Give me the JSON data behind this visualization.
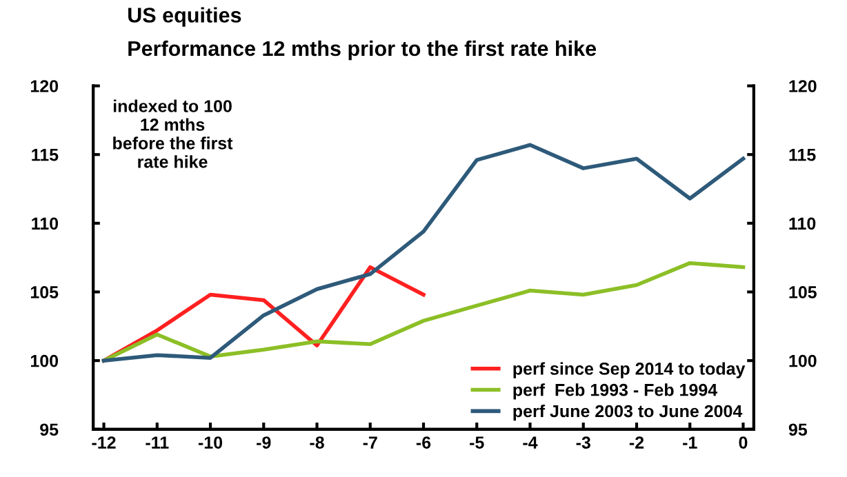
{
  "chart_data": {
    "type": "line",
    "title": "US equities",
    "subtitle": "Performance 12 mths prior to the first rate hike",
    "categories": [
      "-12",
      "-11",
      "-10",
      "-9",
      "-8",
      "-7",
      "-6",
      "-5",
      "-4",
      "-3",
      "-2",
      "-1",
      "0"
    ],
    "series": [
      {
        "name": "perf since Sep 2014 to today",
        "color": "#ff2020",
        "values": [
          100,
          102.2,
          104.8,
          104.4,
          101.1,
          106.8,
          104.8,
          null,
          null,
          null,
          null,
          null,
          null
        ]
      },
      {
        "name": "perf  Feb 1993 - Feb 1994",
        "color": "#8cbf26",
        "values": [
          100,
          101.9,
          100.3,
          100.8,
          101.4,
          101.2,
          102.9,
          104.0,
          105.1,
          104.8,
          105.5,
          107.1,
          106.8
        ]
      },
      {
        "name": "perf June 2003 to June 2004",
        "color": "#2e5a7a",
        "values": [
          100,
          100.4,
          100.2,
          103.3,
          105.2,
          106.3,
          109.4,
          114.6,
          115.7,
          114.0,
          114.7,
          111.8,
          114.7
        ]
      }
    ],
    "ylim": [
      95,
      120
    ],
    "yticks": [
      95,
      100,
      105,
      110,
      115,
      120
    ],
    "y2lim": [
      95,
      120
    ],
    "y2ticks": [
      95,
      100,
      105,
      110,
      115,
      120
    ],
    "annotations": [
      "indexed to 100\n12 mths\nbefore the first\nrate hike"
    ],
    "legend": "bottom right",
    "grid": false,
    "marker": "none",
    "line_style": "solid"
  }
}
